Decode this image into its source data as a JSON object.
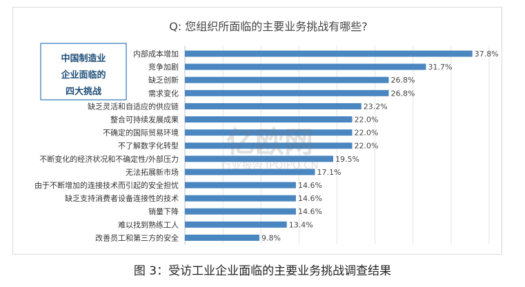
{
  "chart_data": {
    "type": "bar",
    "orientation": "horizontal",
    "title": "Q: 您组织所面临的主要业务挑战有哪些?",
    "categories": [
      "内部成本增加",
      "竞争加剧",
      "缺乏创新",
      "需求变化",
      "缺乏灵活和自适应的供应链",
      "整合可持续发展成果",
      "不确定的国际贸易环境",
      "不了解数字化转型",
      "不断变化的经济状况和不确定性/外部压力",
      "无法拓展新市场",
      "由于不断增加的连接技术而引起的安全担忧",
      "缺乏支持消费者设备连接性的技术",
      "销量下降",
      "难以找到熟练工人",
      "改善员工和第三方的安全"
    ],
    "values": [
      37.8,
      31.7,
      26.8,
      26.8,
      23.2,
      22.0,
      22.0,
      22.0,
      19.5,
      17.1,
      14.6,
      14.6,
      14.6,
      13.4,
      9.8
    ],
    "data_labels": [
      "37.8%",
      "31.7%",
      "26.8%",
      "26.8%",
      "23.2%",
      "22.0%",
      "22.0%",
      "22.0%",
      "19.5%",
      "17.1%",
      "14.6%",
      "14.6%",
      "14.6%",
      "13.4%",
      "9.8%"
    ],
    "xlim": [
      0,
      40
    ],
    "grid": true,
    "bar_color": "#4a86c0",
    "annotation": "中国制造业\n企业面临的\n四大挑战"
  },
  "watermark": {
    "main": "亿欧网",
    "sub": "行业报告 IPOIPO.CN"
  },
  "caption": "图 3：受访工业企业面临的主要业务挑战调查结果"
}
